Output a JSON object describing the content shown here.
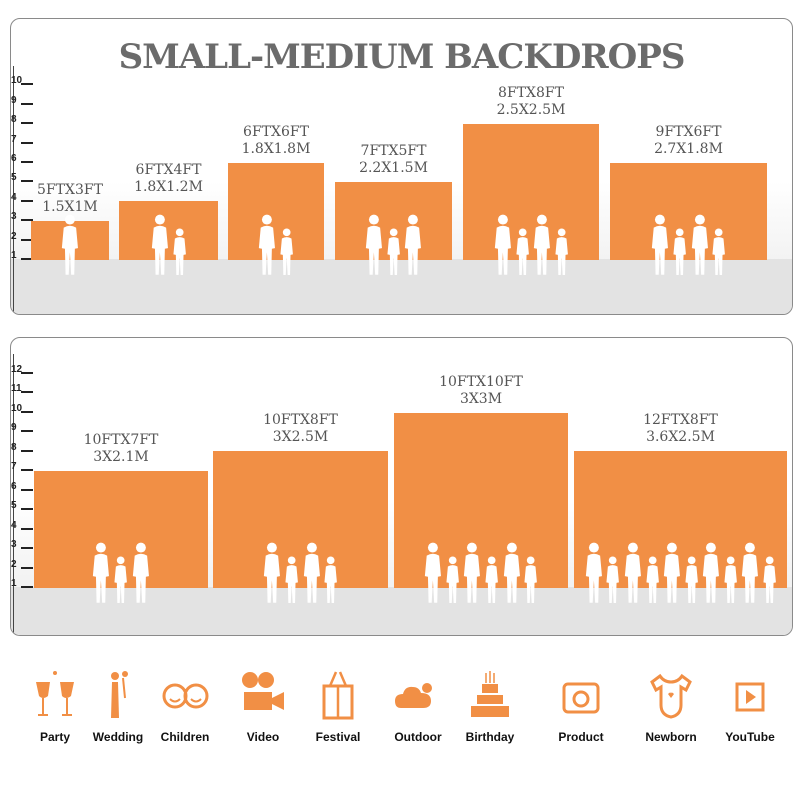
{
  "top": {
    "title": "SMALL-MEDIUM BACKDROPS",
    "scale": [
      "1",
      "2",
      "3",
      "4",
      "5",
      "6",
      "7",
      "8",
      "9",
      "10"
    ],
    "sizes": [
      {
        "ft": "5FTX3FT",
        "m": "1.5X1M",
        "people": 1
      },
      {
        "ft": "6FTX4FT",
        "m": "1.8X1.2M",
        "people": 2
      },
      {
        "ft": "6FTX6FT",
        "m": "1.8X1.8M",
        "people": 2
      },
      {
        "ft": "7FTX5FT",
        "m": "2.2X1.5M",
        "people": 3
      },
      {
        "ft": "8FTX8FT",
        "m": "2.5X2.5M",
        "people": 4
      },
      {
        "ft": "9FTX6FT",
        "m": "2.7X1.8M",
        "people": 4
      }
    ]
  },
  "bottom": {
    "scale": [
      "1",
      "2",
      "3",
      "4",
      "5",
      "6",
      "7",
      "8",
      "9",
      "10",
      "11",
      "12"
    ],
    "sizes": [
      {
        "ft": "10FTX7FT",
        "m": "3X2.1M",
        "people": 3
      },
      {
        "ft": "10FTX8FT",
        "m": "3X2.5M",
        "people": 4
      },
      {
        "ft": "10FTX10FT",
        "m": "3X3M",
        "people": 6
      },
      {
        "ft": "12FTX8FT",
        "m": "3.6X2.5M",
        "people": 10
      }
    ]
  },
  "accent": "#f18f45",
  "uses": [
    {
      "label": "Party",
      "icon": "toast-glasses-icon"
    },
    {
      "label": "Wedding",
      "icon": "wedding-couple-icon"
    },
    {
      "label": "Children",
      "icon": "children-faces-icon"
    },
    {
      "label": "Video",
      "icon": "movie-camera-icon"
    },
    {
      "label": "Festival",
      "icon": "gift-box-icon"
    },
    {
      "label": "Outdoor",
      "icon": "cloud-icon"
    },
    {
      "label": "Birthday",
      "icon": "birthday-cake-icon"
    },
    {
      "label": "Product",
      "icon": "camera-icon"
    },
    {
      "label": "Newborn",
      "icon": "baby-onesie-icon"
    },
    {
      "label": "YouTube",
      "icon": "play-button-icon"
    }
  ]
}
